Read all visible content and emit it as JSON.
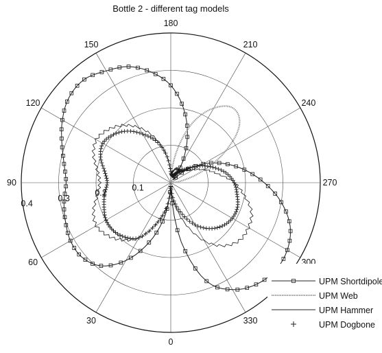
{
  "chart_data": {
    "type": "polar",
    "title": "Bottle 2 - different tag models",
    "angular_unit": "degrees",
    "zero_direction": "bottom",
    "angle_direction": "counterclockwise",
    "angular_ticks": [
      "0",
      "30",
      "60",
      "90",
      "120",
      "150",
      "180",
      "210",
      "240",
      "270",
      "300",
      "330"
    ],
    "radial_range": [
      0,
      0.4
    ],
    "radial_ticks": [
      "0.1",
      "0.2",
      "0.3",
      "0.4"
    ],
    "grid": true,
    "legend_position": "bottom-right",
    "series": [
      {
        "name": "UPM Shortdipole",
        "style": "line with square markers",
        "angles": [
          0,
          10,
          20,
          30,
          40,
          50,
          60,
          70,
          80,
          90,
          100,
          110,
          120,
          130,
          140,
          150,
          160,
          170,
          180,
          190,
          200,
          210,
          220,
          230,
          240,
          250,
          260,
          270,
          280,
          290,
          300,
          310,
          320,
          330,
          340,
          350
        ],
        "radii": [
          0.01,
          0.09,
          0.17,
          0.24,
          0.29,
          0.31,
          0.31,
          0.3,
          0.29,
          0.28,
          0.29,
          0.31,
          0.335,
          0.355,
          0.36,
          0.345,
          0.33,
          0.3,
          0.26,
          0.2,
          0.13,
          0.06,
          0.01,
          0.05,
          0.1,
          0.15,
          0.2,
          0.25,
          0.3,
          0.34,
          0.36,
          0.365,
          0.355,
          0.33,
          0.28,
          0.16
        ]
      },
      {
        "name": "UPM Web",
        "style": "gray dotted line",
        "angles": [
          0,
          10,
          20,
          30,
          40,
          50,
          60,
          70,
          80,
          90,
          100,
          110,
          120,
          130,
          140,
          150,
          160,
          170,
          180,
          190,
          200,
          210,
          220,
          230,
          240,
          250,
          260,
          270,
          280,
          290,
          300,
          310,
          320,
          330,
          340,
          350
        ],
        "radii": [
          0.0,
          0.0,
          0.0,
          0.0,
          0.0,
          0.0,
          0.0,
          0.0,
          0.0,
          0.0,
          0.0,
          0.0,
          0.0,
          0.0,
          0.0,
          0.0,
          0.0,
          0.0,
          0.0,
          0.08,
          0.17,
          0.23,
          0.26,
          0.24,
          0.17,
          0.09,
          0.03,
          0.0,
          0.0,
          0.0,
          0.0,
          0.0,
          0.0,
          0.0,
          0.0,
          0.0
        ]
      },
      {
        "name": "UPM Hammer",
        "style": "thin solid line",
        "angles": [
          0,
          10,
          20,
          30,
          40,
          50,
          60,
          70,
          80,
          90,
          100,
          110,
          120,
          130,
          140,
          150,
          160,
          170,
          180,
          190,
          200,
          210,
          220,
          230,
          240,
          250,
          260,
          270,
          280,
          290,
          300,
          310,
          320,
          330,
          340,
          350
        ],
        "radii": [
          0.02,
          0.07,
          0.12,
          0.17,
          0.2,
          0.22,
          0.23,
          0.22,
          0.2,
          0.19,
          0.2,
          0.22,
          0.23,
          0.22,
          0.2,
          0.17,
          0.13,
          0.08,
          0.03,
          0.03,
          0.04,
          0.04,
          0.04,
          0.05,
          0.07,
          0.1,
          0.13,
          0.17,
          0.2,
          0.23,
          0.24,
          0.24,
          0.22,
          0.18,
          0.12,
          0.06
        ]
      },
      {
        "name": "UPM Dogbone",
        "style": "plus markers",
        "angles": [
          0,
          10,
          20,
          30,
          40,
          50,
          60,
          70,
          80,
          90,
          100,
          110,
          120,
          130,
          140,
          150,
          160,
          170,
          180,
          190,
          200,
          210,
          220,
          230,
          240,
          250,
          260,
          270,
          280,
          290,
          300,
          310,
          320,
          330,
          340,
          350
        ],
        "radii": [
          0.01,
          0.07,
          0.12,
          0.17,
          0.19,
          0.2,
          0.2,
          0.19,
          0.18,
          0.17,
          0.18,
          0.2,
          0.21,
          0.2,
          0.18,
          0.15,
          0.12,
          0.08,
          0.03,
          0.02,
          0.02,
          0.03,
          0.04,
          0.06,
          0.09,
          0.12,
          0.15,
          0.17,
          0.18,
          0.19,
          0.19,
          0.18,
          0.16,
          0.13,
          0.09,
          0.05
        ]
      }
    ]
  }
}
